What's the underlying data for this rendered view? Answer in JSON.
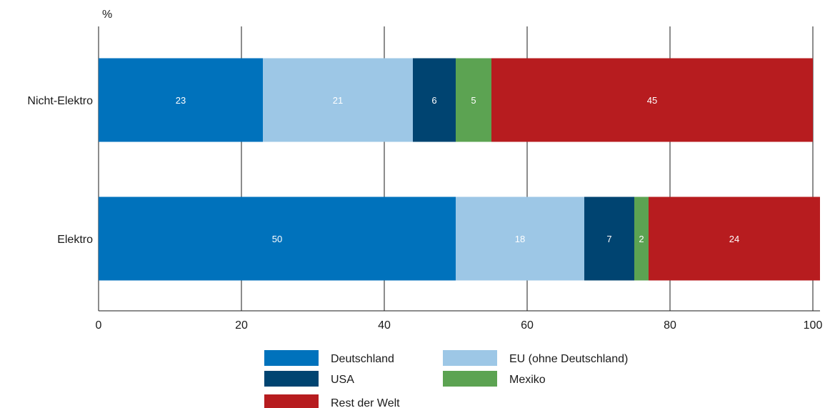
{
  "chart_data": {
    "type": "bar",
    "orientation": "horizontal",
    "stacked": true,
    "unit_label": "%",
    "categories": [
      "Nicht-Elektro",
      "Elektro"
    ],
    "series": [
      {
        "name": "Deutschland",
        "color": "#0072bc",
        "values": [
          23,
          50
        ],
        "labels": [
          "23",
          "50"
        ]
      },
      {
        "name": "EU (ohne Deutschland)",
        "color": "#9dc7e6",
        "values": [
          21,
          18
        ],
        "labels": [
          "21",
          "18"
        ]
      },
      {
        "name": "USA",
        "color": "#004471",
        "values": [
          6,
          7
        ],
        "labels": [
          "6",
          "7"
        ]
      },
      {
        "name": "Mexiko",
        "color": "#5ca352",
        "values": [
          5,
          2
        ],
        "labels": [
          "5",
          "2"
        ]
      },
      {
        "name": "Rest der Welt",
        "color": "#b71c1f",
        "values": [
          45,
          24
        ],
        "labels": [
          "45",
          "24"
        ]
      }
    ],
    "xlim": [
      0,
      100
    ],
    "xticks": [
      "0",
      "20",
      "40",
      "60",
      "80",
      "100"
    ],
    "grid": true,
    "legend_position": "bottom"
  }
}
